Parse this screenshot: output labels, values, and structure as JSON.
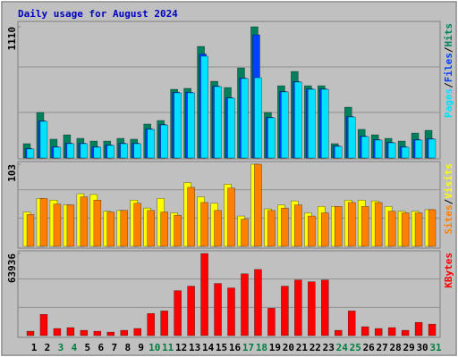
{
  "chart_data": [
    {
      "type": "bar",
      "title": "Daily usage for August 2024",
      "legend_separator": "/",
      "ylim": [
        0,
        1110
      ],
      "yticks": [
        1110
      ],
      "series": [
        {
          "name": "Hits",
          "color": "#00805c",
          "values": [
            121,
            385,
            159,
            196,
            166,
            143,
            143,
            166,
            159,
            287,
            317,
            581,
            589,
            944,
            649,
            596,
            762,
            1110,
            385,
            611,
            732,
            611,
            611,
            121,
            430,
            242,
            196,
            166,
            143,
            211,
            234
          ]
        },
        {
          "name": "Files",
          "color": "#0040ff",
          "values": [
            80,
            315,
            95,
            125,
            125,
            95,
            110,
            125,
            125,
            246,
            283,
            556,
            556,
            880,
            608,
            510,
            676,
            1042,
            345,
            563,
            646,
            585,
            585,
            102,
            351,
            185,
            155,
            132,
            95,
            155,
            163
          ]
        },
        {
          "name": "Pages",
          "color": "#00e0ff",
          "values": [
            76,
            310,
            91,
            121,
            121,
            91,
            106,
            121,
            121,
            242,
            279,
            551,
            551,
            861,
            604,
            506,
            672,
            679,
            340,
            559,
            642,
            581,
            581,
            98,
            347,
            181,
            151,
            128,
            91,
            151,
            159
          ]
        }
      ]
    },
    {
      "type": "bar",
      "legend_separator": "/",
      "ylim": [
        0,
        103
      ],
      "yticks": [
        103
      ],
      "series": [
        {
          "name": "Visits",
          "color": "#ffff00",
          "values": [
            43,
            60,
            58,
            52,
            66,
            65,
            44,
            45,
            58,
            48,
            60,
            42,
            80,
            62,
            54,
            78,
            38,
            103,
            47,
            52,
            57,
            42,
            50,
            50,
            58,
            58,
            57,
            50,
            44,
            44,
            46
          ]
        },
        {
          "name": "Sites",
          "color": "#ff8000",
          "values": [
            40,
            60,
            53,
            52,
            62,
            58,
            43,
            45,
            54,
            45,
            43,
            39,
            74,
            55,
            45,
            73,
            34,
            103,
            45,
            48,
            52,
            38,
            42,
            50,
            55,
            50,
            55,
            44,
            42,
            42,
            46
          ]
        }
      ]
    },
    {
      "type": "bar",
      "ylim": [
        0,
        63936
      ],
      "yticks": [
        63936
      ],
      "categories": [
        "1",
        "2",
        "3",
        "4",
        "5",
        "6",
        "7",
        "8",
        "9",
        "10",
        "11",
        "12",
        "13",
        "14",
        "15",
        "16",
        "17",
        "18",
        "19",
        "20",
        "21",
        "22",
        "23",
        "24",
        "25",
        "26",
        "27",
        "28",
        "29",
        "30",
        "31"
      ],
      "category_colors": [
        "#000000",
        "#000000",
        "#008040",
        "#008040",
        "#000000",
        "#000000",
        "#000000",
        "#000000",
        "#000000",
        "#008040",
        "#008040",
        "#000000",
        "#000000",
        "#000000",
        "#000000",
        "#000000",
        "#008040",
        "#008040",
        "#000000",
        "#000000",
        "#000000",
        "#000000",
        "#000000",
        "#008040",
        "#008040",
        "#000000",
        "#000000",
        "#000000",
        "#000000",
        "#000000",
        "#008040"
      ],
      "series": [
        {
          "name": "KBytes",
          "color": "#ff0000",
          "values": [
            3400,
            16500,
            5500,
            6200,
            4100,
            3400,
            2700,
            4100,
            5500,
            17200,
            19200,
            35000,
            38500,
            63936,
            40600,
            37100,
            48100,
            51500,
            21300,
            38500,
            43300,
            41900,
            43300,
            4100,
            19200,
            6900,
            5500,
            6200,
            4100,
            10300,
            8900
          ]
        }
      ]
    }
  ]
}
